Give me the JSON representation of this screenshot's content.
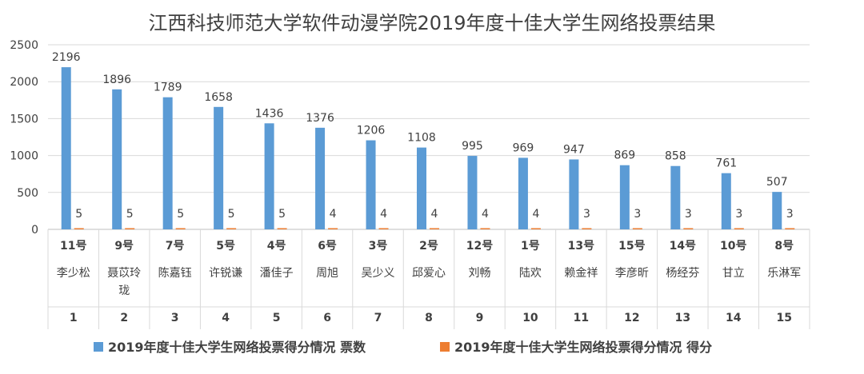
{
  "chart_data": {
    "type": "bar",
    "title": "江西科技师范大学软件动漫学院2019年度十佳大学生网络投票结果",
    "ylim": [
      0,
      2500
    ],
    "yticks": [
      0,
      500,
      1000,
      1500,
      2000,
      2500
    ],
    "grid": true,
    "legend_position": "bottom",
    "categories": [
      {
        "rank": "1",
        "number": "11号",
        "name": "李少松"
      },
      {
        "rank": "2",
        "number": "9号",
        "name": "聂苡玲珑"
      },
      {
        "rank": "3",
        "number": "7号",
        "name": "陈嘉钰"
      },
      {
        "rank": "4",
        "number": "5号",
        "name": "许锐谦"
      },
      {
        "rank": "5",
        "number": "4号",
        "name": "潘佳子"
      },
      {
        "rank": "6",
        "number": "6号",
        "name": "周旭"
      },
      {
        "rank": "7",
        "number": "3号",
        "name": "吴少义"
      },
      {
        "rank": "8",
        "number": "2号",
        "name": "邱爱心"
      },
      {
        "rank": "9",
        "number": "12号",
        "name": "刘畅"
      },
      {
        "rank": "10",
        "number": "1号",
        "name": "陆欢"
      },
      {
        "rank": "11",
        "number": "13号",
        "name": "赖金祥"
      },
      {
        "rank": "12",
        "number": "15号",
        "name": "李彦昕"
      },
      {
        "rank": "13",
        "number": "14号",
        "name": "杨经芬"
      },
      {
        "rank": "14",
        "number": "10号",
        "name": "甘立"
      },
      {
        "rank": "15",
        "number": "8号",
        "name": "乐淋军"
      }
    ],
    "series": [
      {
        "name": "2019年度十佳大学生网络投票得分情况 票数",
        "color": "#5B9BD5",
        "values": [
          2196,
          1896,
          1789,
          1658,
          1436,
          1376,
          1206,
          1108,
          995,
          969,
          947,
          869,
          858,
          761,
          507
        ]
      },
      {
        "name": "2019年度十佳大学生网络投票得分情况 得分",
        "color": "#ED7D31",
        "values": [
          5,
          5,
          5,
          5,
          5,
          4,
          4,
          4,
          4,
          4,
          3,
          3,
          3,
          3,
          3
        ]
      }
    ]
  }
}
